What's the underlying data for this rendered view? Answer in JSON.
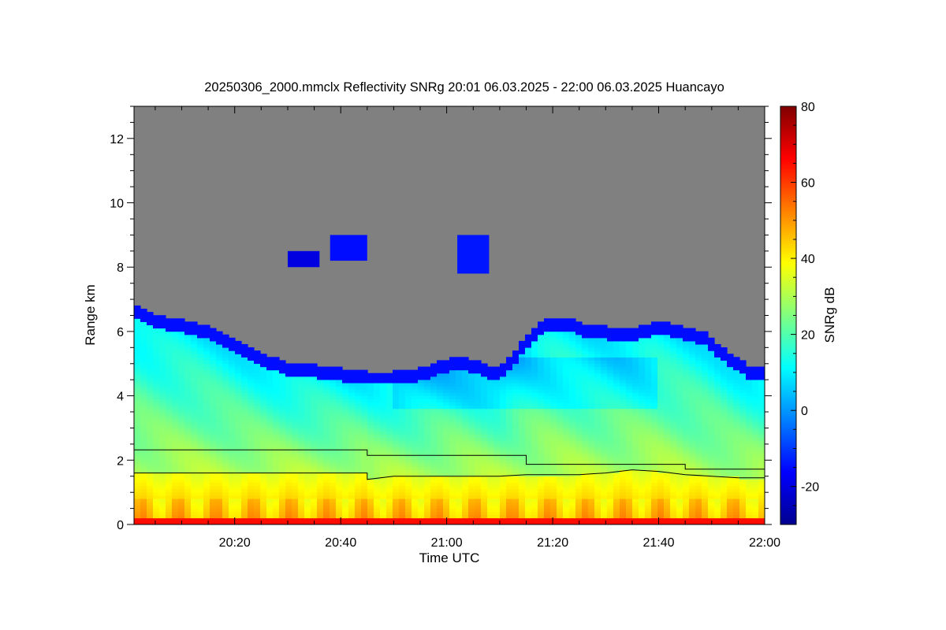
{
  "chart_data": {
    "type": "heatmap",
    "title": "20250306_2000.mmclx Reflectivity SNRg   20:01 06.03.2025 - 22:00 06.03.2025 Huancayo",
    "xlabel": "Time UTC",
    "ylabel": "Range km",
    "colorbar_label": "SNRg dB",
    "x_range_minutes_utc": [
      1201,
      1320
    ],
    "x_ticks": [
      {
        "value": 1220,
        "label": "20:20"
      },
      {
        "value": 1240,
        "label": "20:40"
      },
      {
        "value": 1260,
        "label": "21:00"
      },
      {
        "value": 1280,
        "label": "21:20"
      },
      {
        "value": 1300,
        "label": "21:40"
      },
      {
        "value": 1320,
        "label": "22:00"
      }
    ],
    "ylim": [
      0,
      13
    ],
    "y_ticks": [
      {
        "value": 0,
        "label": "0"
      },
      {
        "value": 2,
        "label": "2"
      },
      {
        "value": 4,
        "label": "4"
      },
      {
        "value": 6,
        "label": "6"
      },
      {
        "value": 8,
        "label": "8"
      },
      {
        "value": 10,
        "label": "10"
      },
      {
        "value": 12,
        "label": "12"
      }
    ],
    "color_range": [
      -30,
      80
    ],
    "colorbar_ticks": [
      {
        "value": -20,
        "label": "-20"
      },
      {
        "value": 0,
        "label": "0"
      },
      {
        "value": 20,
        "label": "20"
      },
      {
        "value": 40,
        "label": "40"
      },
      {
        "value": 60,
        "label": "60"
      },
      {
        "value": 80,
        "label": "80"
      }
    ],
    "colormap": [
      "#00008f",
      "#0000ff",
      "#0080ff",
      "#00ffff",
      "#80ff80",
      "#ffff00",
      "#ff8000",
      "#ff0000",
      "#800000"
    ],
    "no_signal_color": "#808080",
    "line_color": "#000000",
    "echo_top_km": [
      [
        1201,
        6.8
      ],
      [
        1204,
        6.5
      ],
      [
        1207,
        6.4
      ],
      [
        1211,
        6.3
      ],
      [
        1215,
        6.1
      ],
      [
        1219,
        5.8
      ],
      [
        1222,
        5.5
      ],
      [
        1226,
        5.2
      ],
      [
        1230,
        5.0
      ],
      [
        1235,
        4.9
      ],
      [
        1240,
        4.8
      ],
      [
        1245,
        4.7
      ],
      [
        1250,
        4.7
      ],
      [
        1255,
        4.8
      ],
      [
        1258,
        5.0
      ],
      [
        1262,
        5.2
      ],
      [
        1266,
        5.0
      ],
      [
        1270,
        4.8
      ],
      [
        1274,
        5.6
      ],
      [
        1278,
        6.3
      ],
      [
        1282,
        6.4
      ],
      [
        1286,
        6.2
      ],
      [
        1290,
        6.1
      ],
      [
        1295,
        6.0
      ],
      [
        1300,
        6.3
      ],
      [
        1305,
        6.1
      ],
      [
        1309,
        5.9
      ],
      [
        1313,
        5.3
      ],
      [
        1317,
        4.9
      ],
      [
        1320,
        4.8
      ]
    ],
    "stepped_line_km": [
      [
        1201,
        2.32
      ],
      [
        1245,
        2.32
      ],
      [
        1245,
        2.15
      ],
      [
        1275,
        2.15
      ],
      [
        1275,
        1.87
      ],
      [
        1305,
        1.87
      ],
      [
        1305,
        1.72
      ],
      [
        1320,
        1.72
      ]
    ],
    "layer_top_km": [
      [
        1201,
        1.6
      ],
      [
        1245,
        1.6
      ],
      [
        1245,
        1.4
      ],
      [
        1250,
        1.5
      ],
      [
        1260,
        1.5
      ],
      [
        1270,
        1.5
      ],
      [
        1275,
        1.55
      ],
      [
        1285,
        1.55
      ],
      [
        1290,
        1.6
      ],
      [
        1295,
        1.7
      ],
      [
        1300,
        1.65
      ],
      [
        1305,
        1.55
      ],
      [
        1310,
        1.5
      ],
      [
        1315,
        1.45
      ],
      [
        1320,
        1.45
      ]
    ],
    "high_cloud_patches": [
      {
        "t": [
          1238,
          1245
        ],
        "km": [
          8.2,
          9.0
        ],
        "snr_db": -15
      },
      {
        "t": [
          1230,
          1236
        ],
        "km": [
          8.0,
          8.5
        ],
        "snr_db": -20
      },
      {
        "t": [
          1262,
          1268
        ],
        "km": [
          7.8,
          9.0
        ],
        "snr_db": -14
      }
    ]
  }
}
